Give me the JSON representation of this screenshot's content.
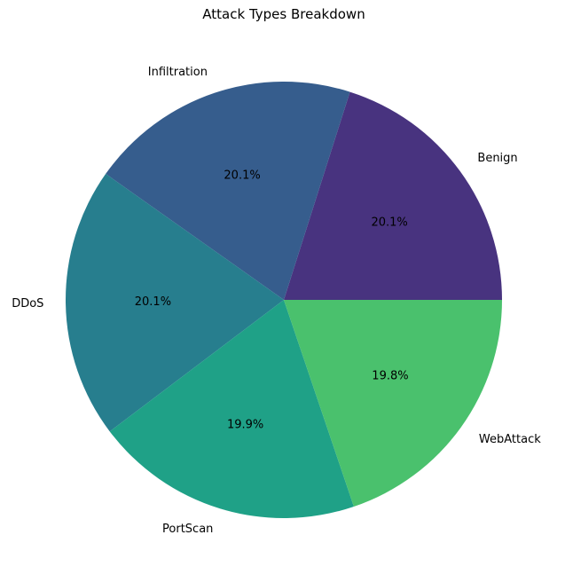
{
  "chart_data": {
    "type": "pie",
    "title": "Attack Types Breakdown",
    "start_angle_deg": 0,
    "direction": "counterclockwise",
    "slices": [
      {
        "label": "Benign",
        "value": 20.1,
        "pct_label": "20.1%",
        "color": "#48337f"
      },
      {
        "label": "Infiltration",
        "value": 20.1,
        "pct_label": "20.1%",
        "color": "#365d8d"
      },
      {
        "label": "DDoS",
        "value": 20.1,
        "pct_label": "20.1%",
        "color": "#277e8e"
      },
      {
        "label": "PortScan",
        "value": 19.9,
        "pct_label": "19.9%",
        "color": "#1fa187"
      },
      {
        "label": "WebAttack",
        "value": 19.8,
        "pct_label": "19.8%",
        "color": "#4ac16d"
      }
    ]
  }
}
